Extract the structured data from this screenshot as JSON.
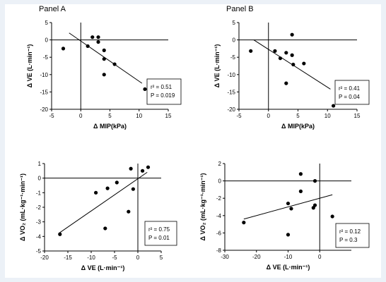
{
  "figure": {
    "background": "#ecf1f7",
    "panel_a_label": "Panel A",
    "panel_b_label": "Panel B"
  },
  "chart_data": [
    {
      "type": "scatter",
      "xlabel": "Δ MIP(kPa)",
      "ylabel": "Δ VE (L·min⁻¹)",
      "xlim": [
        -5,
        15
      ],
      "ylim": [
        -20,
        5
      ],
      "xticks": [
        -5,
        0,
        5,
        10,
        15
      ],
      "yticks": [
        5,
        0,
        -5,
        -10,
        -15,
        -20
      ],
      "points": [
        {
          "x": -3,
          "y": -2.5
        },
        {
          "x": 1.2,
          "y": -1.8
        },
        {
          "x": 2,
          "y": 0.8
        },
        {
          "x": 3,
          "y": 0.8
        },
        {
          "x": 3,
          "y": -0.6
        },
        {
          "x": 4,
          "y": -3
        },
        {
          "x": 4,
          "y": -5.5
        },
        {
          "x": 4,
          "y": -10
        },
        {
          "x": 5.8,
          "y": -7
        },
        {
          "x": 11,
          "y": -14.2
        }
      ],
      "fit": [
        [
          -2,
          2
        ],
        [
          10.5,
          -12.5
        ]
      ],
      "stats": {
        "r2": "r² = 0.51",
        "p": "P = 0.019"
      }
    },
    {
      "type": "scatter",
      "xlabel": "Δ MIP(kPa)",
      "ylabel": "Δ VE (L·min⁻¹)",
      "xlim": [
        -5,
        15
      ],
      "ylim": [
        -20,
        5
      ],
      "xticks": [
        -5,
        0,
        5,
        10,
        15
      ],
      "yticks": [
        5,
        0,
        -5,
        -10,
        -15,
        -20
      ],
      "points": [
        {
          "x": -3,
          "y": -3.2
        },
        {
          "x": 1.1,
          "y": -3.2
        },
        {
          "x": 2,
          "y": -5.3
        },
        {
          "x": 3,
          "y": -3.7
        },
        {
          "x": 3,
          "y": -12.5
        },
        {
          "x": 4,
          "y": 1.5
        },
        {
          "x": 4,
          "y": -4.4
        },
        {
          "x": 4.2,
          "y": -7.1
        },
        {
          "x": 6,
          "y": -6.8
        },
        {
          "x": 11,
          "y": -19
        }
      ],
      "fit": [
        [
          -2.5,
          0
        ],
        [
          10.5,
          -14.2
        ]
      ],
      "stats": {
        "r2": "r² = 0.41",
        "p": "P = 0.04"
      }
    },
    {
      "type": "scatter",
      "xlabel": "Δ VE (L·min⁻¹)",
      "ylabel": "Δ VO₂ (mL·kg⁻¹·min⁻¹)",
      "xlim": [
        -20,
        5
      ],
      "ylim": [
        -5,
        1
      ],
      "xticks": [
        -20,
        -15,
        -10,
        -5,
        0,
        5
      ],
      "yticks": [
        1,
        0,
        -1,
        -2,
        -3,
        -4,
        -5
      ],
      "points": [
        {
          "x": -16.7,
          "y": -3.85
        },
        {
          "x": -9,
          "y": -1
        },
        {
          "x": -7,
          "y": -3.45
        },
        {
          "x": -6.5,
          "y": -0.7
        },
        {
          "x": -4.5,
          "y": -0.3
        },
        {
          "x": -2,
          "y": -2.3
        },
        {
          "x": -1.5,
          "y": 0.65
        },
        {
          "x": -1,
          "y": -0.75
        },
        {
          "x": 1,
          "y": 0.5
        },
        {
          "x": 2.2,
          "y": 0.75
        }
      ],
      "fit": [
        [
          -17,
          -3.8
        ],
        [
          2,
          0.4
        ]
      ],
      "stats": {
        "r2": "r² = 0.75",
        "p": "P = 0.01"
      }
    },
    {
      "type": "scatter",
      "xlabel": "Δ VE (L·min⁻¹)",
      "ylabel": "Δ VO₂ (mL·kg⁻¹·min⁻¹)",
      "xlim": [
        -30,
        10
      ],
      "ylim": [
        -8,
        2
      ],
      "xticks": [
        -30,
        -20,
        -10,
        0
      ],
      "yticks": [
        2,
        0,
        -2,
        -4,
        -6,
        -8
      ],
      "points": [
        {
          "x": -24,
          "y": -4.8
        },
        {
          "x": -10,
          "y": -2.6
        },
        {
          "x": -10,
          "y": -6.2
        },
        {
          "x": -9,
          "y": -3.2
        },
        {
          "x": -6,
          "y": 0.8
        },
        {
          "x": -6,
          "y": -1.2
        },
        {
          "x": -2,
          "y": -3.1
        },
        {
          "x": -1.5,
          "y": 0
        },
        {
          "x": -1.5,
          "y": -2.8
        },
        {
          "x": 4,
          "y": -4.1
        }
      ],
      "fit": [
        [
          -24,
          -4.4
        ],
        [
          4,
          -1.6
        ]
      ],
      "stats": {
        "r2": "r² = 0.12",
        "p": "P = 0.3"
      }
    }
  ]
}
